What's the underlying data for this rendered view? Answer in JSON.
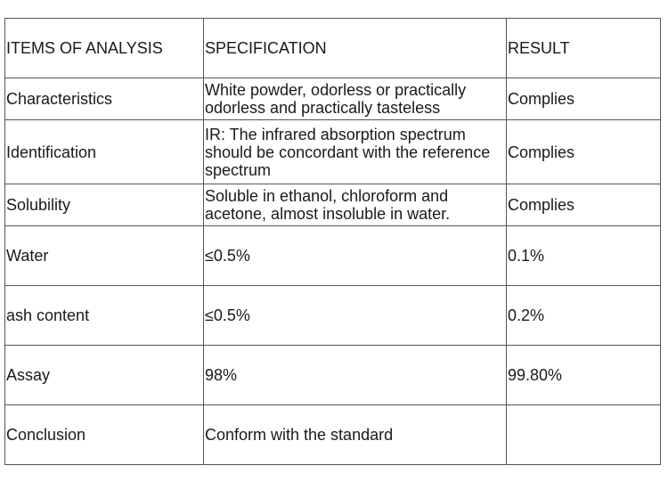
{
  "table": {
    "headers": [
      "ITEMS OF ANALYSIS",
      "SPECIFICATION",
      "RESULT"
    ],
    "rows": [
      [
        "Characteristics",
        "White powder, odorless or practically odorless and practically tasteless",
        "Complies"
      ],
      [
        "Identification",
        "IR: The infrared absorption spectrum should be concordant with the reference spectrum",
        "Complies"
      ],
      [
        "Solubility",
        "Soluble in ethanol, chloroform and acetone, almost insoluble in water.",
        "Complies"
      ],
      [
        "Water",
        "≤0.5%",
        "0.1%"
      ],
      [
        "ash content",
        "≤0.5%",
        "0.2%"
      ],
      [
        "Assay",
        "98%",
        "99.80%"
      ],
      [
        "Conclusion",
        "Conform with the standard",
        ""
      ]
    ]
  }
}
